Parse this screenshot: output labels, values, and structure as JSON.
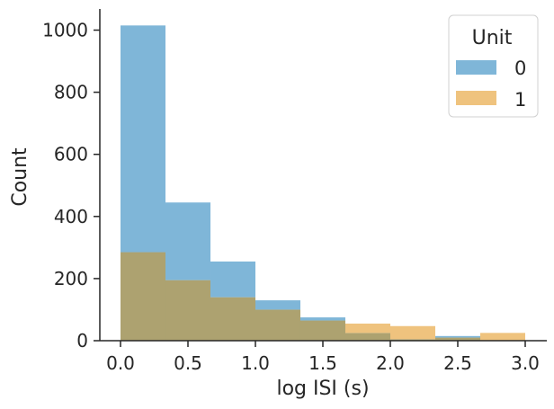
{
  "chart_data": {
    "type": "bar",
    "subtype": "histogram-overlay",
    "xlabel": "log ISI (s)",
    "ylabel": "Count",
    "xlim": [
      -0.15,
      3.18
    ],
    "ylim": [
      0,
      1065
    ],
    "x_ticks": [
      0.0,
      0.5,
      1.0,
      1.5,
      2.0,
      2.5,
      3.0
    ],
    "x_tick_labels": [
      "0.0",
      "0.5",
      "1.0",
      "1.5",
      "2.0",
      "2.5",
      "3.0"
    ],
    "y_ticks": [
      0,
      200,
      400,
      600,
      800,
      1000
    ],
    "y_tick_labels": [
      "0",
      "200",
      "400",
      "600",
      "800",
      "1000"
    ],
    "bin_edges": [
      0.0,
      0.3333,
      0.6667,
      1.0,
      1.3333,
      1.6667,
      2.0,
      2.3333,
      2.6667,
      3.0
    ],
    "series": [
      {
        "name": "0",
        "color": "#7fb6d8",
        "values": [
          1015,
          445,
          255,
          130,
          75,
          25,
          5,
          15,
          0
        ]
      },
      {
        "name": "1",
        "color": "#efc37e",
        "values": [
          285,
          195,
          140,
          100,
          65,
          55,
          47,
          10,
          25
        ]
      }
    ],
    "overlap_color": "#ada270",
    "legend": {
      "title": "Unit",
      "position": "top-right"
    },
    "grid": false
  }
}
